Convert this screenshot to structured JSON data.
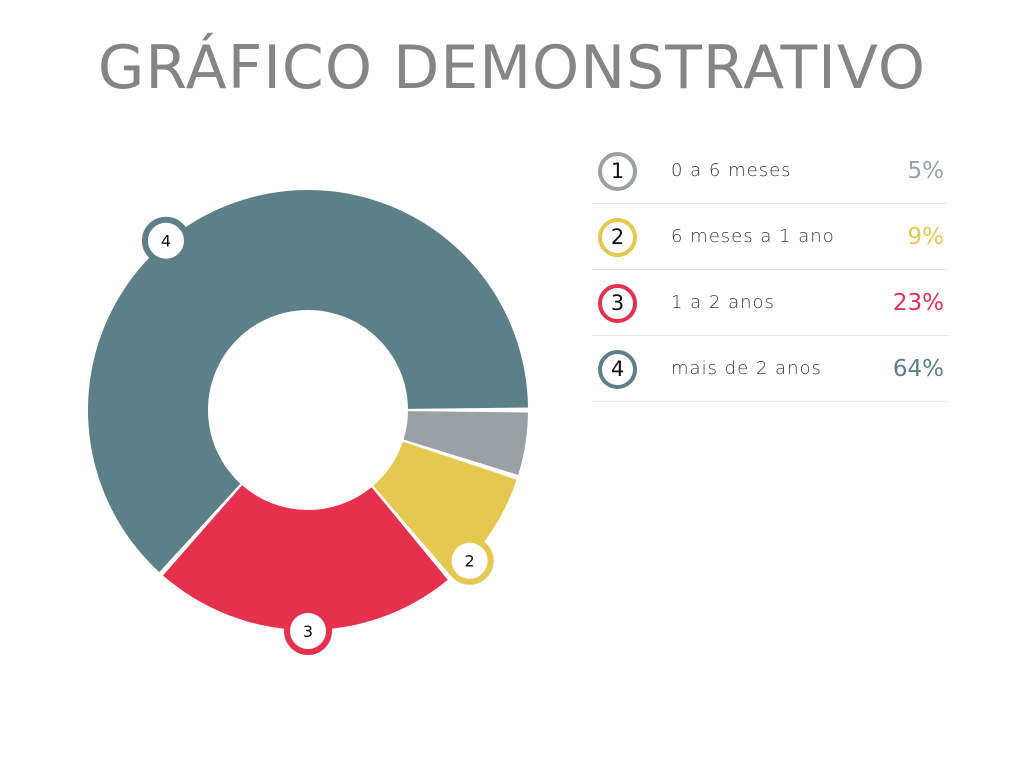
{
  "title": "GRÁFICO DEMONSTRATIVO",
  "chart_data": {
    "type": "pie",
    "title": "GRÁFICO DEMONSTRATIVO",
    "categories": [
      "0 a 6 meses",
      "6 meses a 1 ano",
      "1 a 2 anos",
      "mais de 2 anos"
    ],
    "values": [
      5,
      9,
      23,
      64
    ],
    "value_labels": [
      "5%",
      "9%",
      "23%",
      "64%"
    ],
    "markers": [
      "1",
      "2",
      "3",
      "4"
    ],
    "colors": [
      "#9aa0a4",
      "#e5c84f",
      "#e6314e",
      "#5d7f87"
    ],
    "donut": true,
    "legend_position": "right"
  }
}
